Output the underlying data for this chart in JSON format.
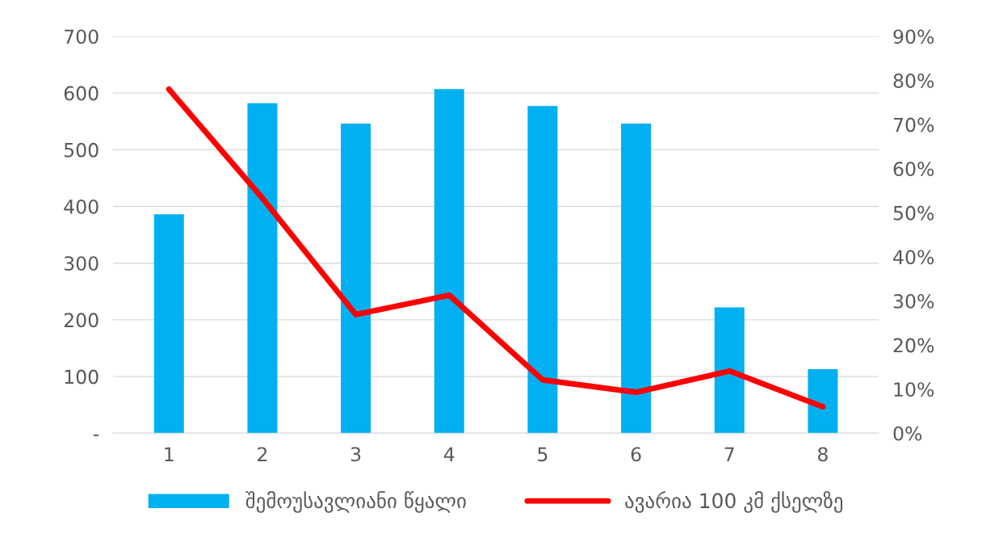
{
  "chart_data": {
    "type": "bar",
    "categories": [
      "1",
      "2",
      "3",
      "4",
      "5",
      "6",
      "7",
      "8"
    ],
    "series": [
      {
        "name": "შემოუსავლიანი წყალი",
        "color": "#00b0f0",
        "values": [
          386,
          582,
          546,
          607,
          577,
          546,
          222,
          113
        ]
      },
      {
        "name": "ავარია 100 კმ ქსელზე",
        "type": "line",
        "axis": "y2",
        "color": "#ff0000",
        "values": [
          78,
          53.3,
          26.9,
          31.3,
          12.1,
          9.3,
          14.1,
          6.0
        ]
      }
    ],
    "ylim": [
      0,
      700
    ],
    "yticks": [
      {
        "value": 0,
        "label": "-"
      },
      100,
      200,
      300,
      400,
      500,
      600,
      700
    ],
    "y2lim": [
      0,
      90
    ],
    "y2ticks": [
      {
        "value": 0,
        "label": "0%"
      },
      {
        "value": 10,
        "label": "10%"
      },
      {
        "value": 20,
        "label": "20%"
      },
      {
        "value": 30,
        "label": "30%"
      },
      {
        "value": 40,
        "label": "40%"
      },
      {
        "value": 50,
        "label": "50%"
      },
      {
        "value": 60,
        "label": "60%"
      },
      {
        "value": 70,
        "label": "70%"
      },
      {
        "value": 80,
        "label": "80%"
      },
      {
        "value": 90,
        "label": "90%"
      }
    ],
    "grid": "y",
    "legend": "bottom",
    "marker": "none",
    "line_style": "solid"
  }
}
